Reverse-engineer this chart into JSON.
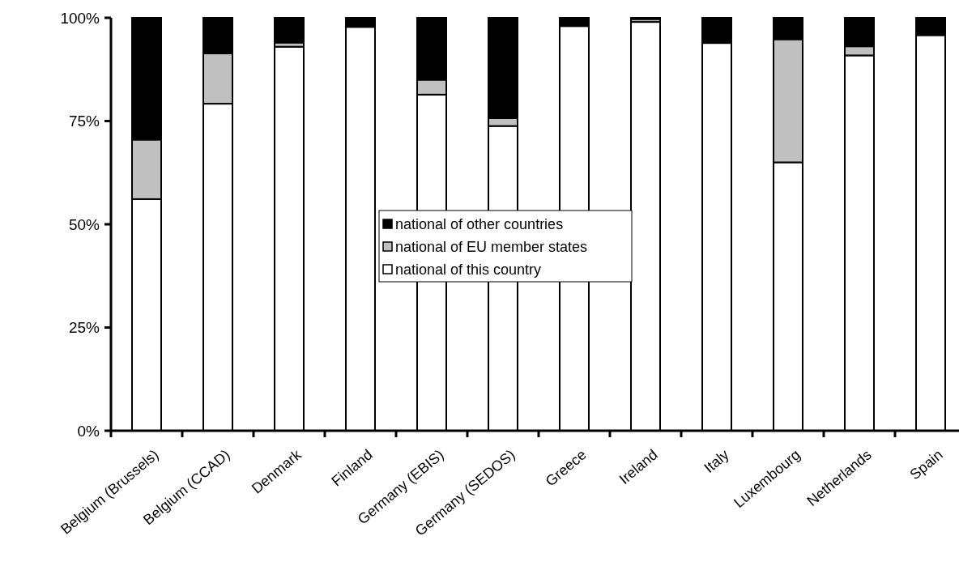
{
  "chart_data": {
    "type": "bar",
    "stacked": true,
    "categories": [
      "Belgium (Brussels)",
      "Belgium (CCAD)",
      "Denmark",
      "Finland",
      "Germany (EBIS)",
      "Germany (SEDOS)",
      "Greece",
      "Ireland",
      "Italy",
      "Luxembourg",
      "Netherlands",
      "Spain"
    ],
    "series": [
      {
        "name": "national of this country",
        "color": "#ffffff",
        "values": [
          56.1,
          79.2,
          93,
          97.8,
          81.4,
          73.8,
          98,
          99,
          93.9,
          65,
          90.9,
          95.8
        ]
      },
      {
        "name": "national of EU member states",
        "color": "#c0c0c0",
        "values": [
          14.4,
          12.2,
          1,
          0,
          3.6,
          1.9,
          null,
          0.7,
          0,
          29.8,
          2.2,
          0
        ]
      },
      {
        "name": "national of other countries",
        "color": "#000000",
        "values": [
          29.5,
          8.6,
          6,
          2.2,
          15,
          24.3,
          2,
          0.3,
          6.1,
          5.2,
          6.9,
          4.2
        ]
      }
    ],
    "ylim": [
      0,
      100
    ],
    "yticks": [
      {
        "value": 0,
        "label": "0%"
      },
      {
        "value": 25,
        "label": "25%"
      },
      {
        "value": 50,
        "label": "50%"
      },
      {
        "value": 75,
        "label": "75%"
      },
      {
        "value": 100,
        "label": "100%"
      }
    ],
    "grid": false,
    "legend": "center"
  }
}
